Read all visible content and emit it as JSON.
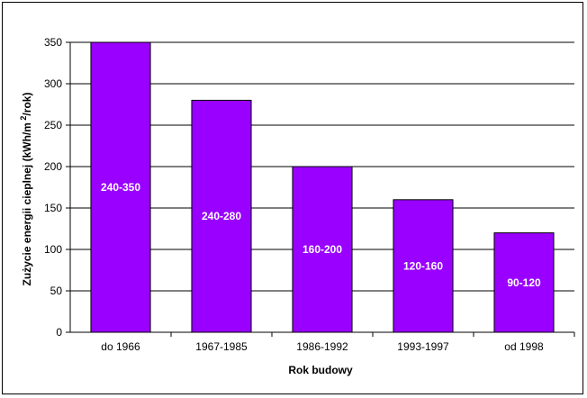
{
  "chart_data": {
    "type": "bar",
    "categories": [
      "do 1966",
      "1967-1985",
      "1986-1992",
      "1993-1997",
      "od 1998"
    ],
    "values": [
      350,
      280,
      200,
      160,
      120
    ],
    "bar_labels": [
      "240-350",
      "240-280",
      "160-200",
      "120-160",
      "90-120"
    ],
    "title": "",
    "xlabel": "Rok budowy",
    "ylabel": "Zużycie energii cieplnej (kWh/m",
    "ylabel_sup": "2",
    "ylabel_end": "/rok)",
    "ylim": [
      0,
      350
    ],
    "yticks": [
      0,
      50,
      100,
      150,
      200,
      250,
      300,
      350
    ],
    "grid": true,
    "legend": "none",
    "colors": {
      "bar": "#9900ff",
      "bar_edge": "#000000",
      "grid": "#000000",
      "frame": "#000000"
    }
  }
}
